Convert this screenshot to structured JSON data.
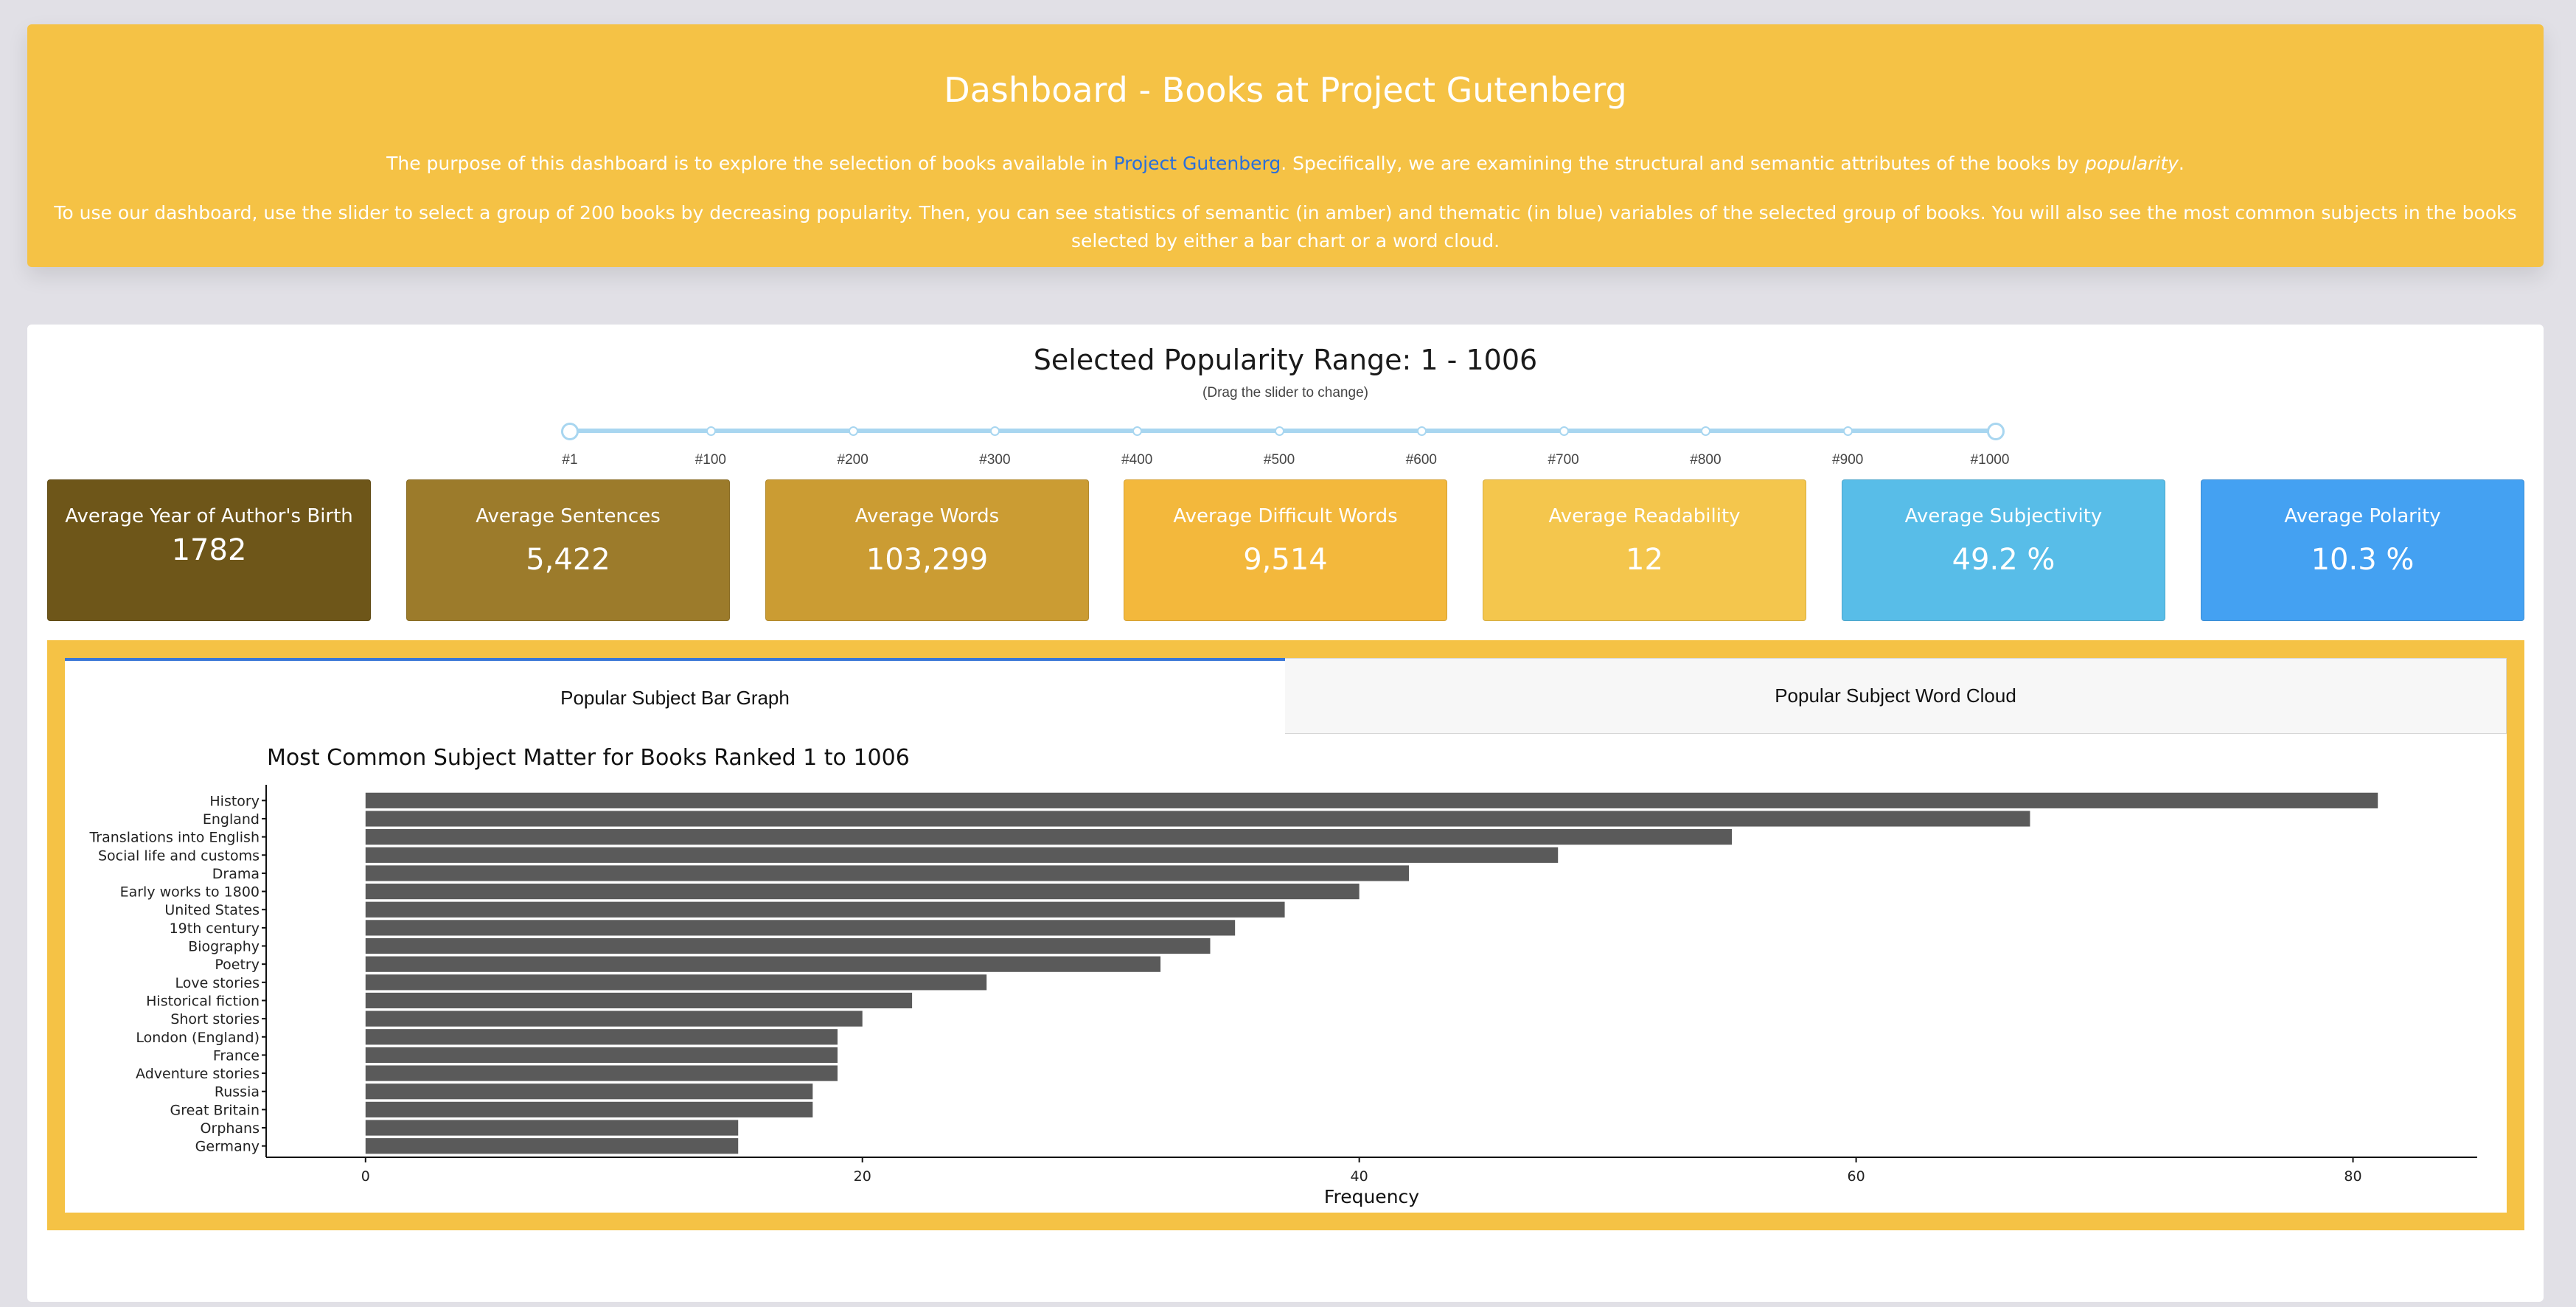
{
  "header": {
    "title": "Dashboard - Books at Project Gutenberg",
    "intro_before_link": "The purpose of this dashboard is to explore the selection of books available in ",
    "link_text": "Project Gutenberg",
    "intro_after_link": ". Specifically, we are examining the structural and semantic attributes of the books by ",
    "intro_emphasis": "popularity",
    "intro_end": ".",
    "instructions": "To use our dashboard, use the slider to select a group of 200 books by decreasing popularity. Then, you can see statistics of semantic (in amber) and thematic (in blue) variables of the selected group of books. You will also see the most common subjects in the books selected by either a bar chart or a word cloud."
  },
  "range": {
    "title": "Selected Popularity Range: 1 - 1006",
    "hint": "(Drag the slider to change)"
  },
  "slider": {
    "min": 1,
    "max": 1006,
    "selected": [
      1,
      1006
    ],
    "marks": [
      {
        "value": 1,
        "label": "#1"
      },
      {
        "value": 100,
        "label": "#100"
      },
      {
        "value": 200,
        "label": "#200"
      },
      {
        "value": 300,
        "label": "#300"
      },
      {
        "value": 400,
        "label": "#400"
      },
      {
        "value": 500,
        "label": "#500"
      },
      {
        "value": 600,
        "label": "#600"
      },
      {
        "value": 700,
        "label": "#700"
      },
      {
        "value": 800,
        "label": "#800"
      },
      {
        "value": 900,
        "label": "#900"
      },
      {
        "value": 1000,
        "label": "#1000"
      }
    ]
  },
  "stats": [
    {
      "label": "Average Year of Author's Birth",
      "value": "1782",
      "color": "#6e5619"
    },
    {
      "label": "Average Sentences",
      "value": "5,422",
      "color": "#9c7b2b"
    },
    {
      "label": "Average Words",
      "value": "103,299",
      "color": "#cb9c33"
    },
    {
      "label": "Average Difficult Words",
      "value": "9,514",
      "color": "#f3b83c"
    },
    {
      "label": "Average Readability",
      "value": "12",
      "color": "#f4c64d"
    },
    {
      "label": "Average Subjectivity",
      "value": "49.2 %",
      "color": "#58bde8"
    },
    {
      "label": "Average Polarity",
      "value": "10.3 %",
      "color": "#44a1f2"
    }
  ],
  "tabs": {
    "bar": "Popular Subject Bar Graph",
    "cloud": "Popular Subject Word Cloud"
  },
  "chart_data": {
    "type": "bar",
    "orientation": "horizontal",
    "title": "Most Common Subject Matter for Books Ranked 1 to 1006",
    "xlabel": "Frequency",
    "ylabel": "",
    "xlim": [
      -4,
      85
    ],
    "xticks": [
      0,
      20,
      40,
      60,
      80
    ],
    "bar_color": "#5a5a5a",
    "categories": [
      "History",
      "England",
      "Translations into English",
      "Social life and customs",
      "Drama",
      "Early works to 1800",
      "United States",
      "19th century",
      "Biography",
      "Poetry",
      "Love stories",
      "Historical fiction",
      "Short stories",
      "London (England)",
      "France",
      "Adventure stories",
      "Russia",
      "Great Britain",
      "Orphans",
      "Germany"
    ],
    "values": [
      81,
      67,
      55,
      48,
      42,
      40,
      37,
      35,
      34,
      32,
      25,
      22,
      20,
      19,
      19,
      19,
      18,
      18,
      15,
      15
    ],
    "grid": false
  }
}
